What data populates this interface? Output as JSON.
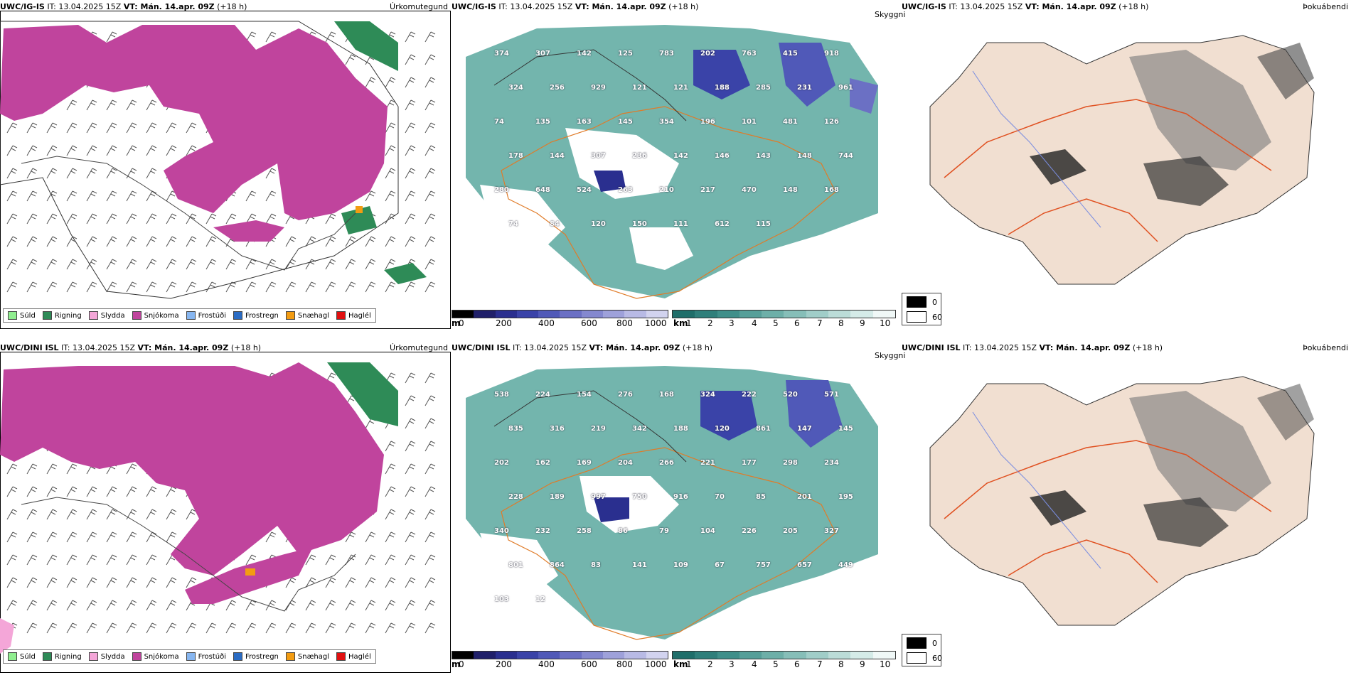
{
  "rows": [
    {
      "model": "UWC/IG-IS",
      "init_label": "IT: 13.04.2025 15Z",
      "valid_label": "VT: Mán. 14.apr. 09Z",
      "lead_label": "(+18 h)",
      "peak_labels": [
        "374",
        "307",
        "142",
        "125",
        "783",
        "202",
        "763",
        "415",
        "918",
        "324",
        "256",
        "929",
        "121",
        "121",
        "188",
        "285",
        "231",
        "961",
        "74",
        "135",
        "163",
        "145",
        "354",
        "196",
        "101",
        "481",
        "126",
        "178",
        "144",
        "307",
        "236",
        "142",
        "146",
        "143",
        "148",
        "744",
        "280",
        "648",
        "524",
        "263",
        "210",
        "217",
        "470",
        "148",
        "168",
        "74",
        "84",
        "120",
        "150",
        "111",
        "612",
        "115"
      ]
    },
    {
      "model": "UWC/DINI ISL",
      "init_label": "IT: 13.04.2025 15Z",
      "valid_label": "VT: Mán. 14.apr. 09Z",
      "lead_label": "(+18 h)",
      "peak_labels": [
        "538",
        "224",
        "154",
        "276",
        "168",
        "324",
        "222",
        "520",
        "571",
        "835",
        "316",
        "219",
        "342",
        "188",
        "120",
        "861",
        "147",
        "145",
        "202",
        "162",
        "169",
        "204",
        "266",
        "221",
        "177",
        "298",
        "234",
        "228",
        "189",
        "997",
        "750",
        "916",
        "70",
        "85",
        "201",
        "195",
        "340",
        "232",
        "258",
        "86",
        "79",
        "104",
        "226",
        "205",
        "327",
        "801",
        "864",
        "83",
        "141",
        "109",
        "67",
        "757",
        "657",
        "449",
        "103",
        "12"
      ]
    }
  ],
  "panels": {
    "precip_type": {
      "field_label": "Úrkomutegund"
    },
    "cloud_height": {
      "field_label": "Skyggni"
    },
    "fog": {
      "field_label": "Þokuábendi"
    }
  },
  "precip_legend": [
    {
      "label": "Súld",
      "color": "#90ee90"
    },
    {
      "label": "Rigning",
      "color": "#2e8b57"
    },
    {
      "label": "Slydda",
      "color": "#f4a6d8"
    },
    {
      "label": "Snjókoma",
      "color": "#c0449d"
    },
    {
      "label": "Frostúði",
      "color": "#87b6f0"
    },
    {
      "label": "Frostregn",
      "color": "#2b6cc4"
    },
    {
      "label": "Snæhagl",
      "color": "#f39c12"
    },
    {
      "label": "Haglél",
      "color": "#e01010"
    }
  ],
  "ceiling_scale": {
    "unit": "m",
    "ticks": [
      "0",
      "200",
      "400",
      "600",
      "800",
      "1000"
    ],
    "colors": [
      "#000000",
      "#20206a",
      "#2a2f8f",
      "#3a43a8",
      "#5059b8",
      "#6b70c4",
      "#8488cf",
      "#9ea1da",
      "#b8bae5",
      "#d2d3ef"
    ]
  },
  "visibility_scale": {
    "unit": "km",
    "ticks": [
      "1",
      "2",
      "3",
      "4",
      "5",
      "6",
      "7",
      "8",
      "9",
      "10"
    ],
    "colors": [
      "#1f6e6a",
      "#2f7f7b",
      "#3f8f8a",
      "#569f99",
      "#6dafa8",
      "#86beb8",
      "#a0cdc8",
      "#bbdcd8",
      "#d5ebe8",
      "#f0f8f7"
    ]
  },
  "fog_legend": [
    {
      "label": "0",
      "color": "#000000"
    },
    {
      "label": "60",
      "color": "#ffffff"
    }
  ]
}
